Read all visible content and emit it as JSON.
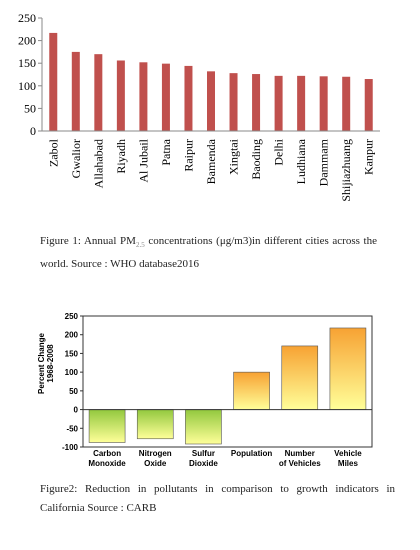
{
  "chart_data": [
    {
      "type": "bar",
      "categories": [
        "Zabol",
        "Gwalior",
        "Allahabad",
        "Riyadh",
        "Al Jubail",
        "Patna",
        "Raipur",
        "Bamenda",
        "Xingtai",
        "Baoding",
        "Delhi",
        "Ludhiana",
        "Dammam",
        "Shijiazhuang",
        "Kanpur"
      ],
      "values": [
        217,
        175,
        170,
        156,
        152,
        149,
        144,
        132,
        128,
        126,
        122,
        122,
        121,
        120,
        115
      ],
      "color": "#c0504d",
      "ylim": [
        0,
        250
      ],
      "yticks": [
        0,
        50,
        100,
        150,
        200,
        250
      ],
      "caption": [
        "Figure 1: Annual PM",
        "2.5",
        " concentrations (μg/m3)in different cities across the world. Source : WHO database2016"
      ]
    },
    {
      "type": "bar",
      "categories": [
        [
          "Carbon",
          "Monoxide"
        ],
        [
          "Nitrogen",
          "Oxide"
        ],
        [
          "Sulfur",
          "Dioxide"
        ],
        [
          "Population"
        ],
        [
          "Number",
          "of Vehicles"
        ],
        [
          "Vehicle",
          "Miles"
        ]
      ],
      "values": [
        -88,
        -78,
        -92,
        100,
        170,
        218
      ],
      "negative_color": "#92c83e",
      "positive_color": "#f7a233",
      "ylabel": [
        "Percent Change",
        "1968-2008"
      ],
      "ylim": [
        -100,
        250
      ],
      "yticks": [
        -100,
        -50,
        0,
        50,
        100,
        150,
        200,
        250
      ],
      "caption": [
        "Figure2: Reduction in pollutants in comparison to growth indicators in California Source : CARB"
      ]
    }
  ]
}
